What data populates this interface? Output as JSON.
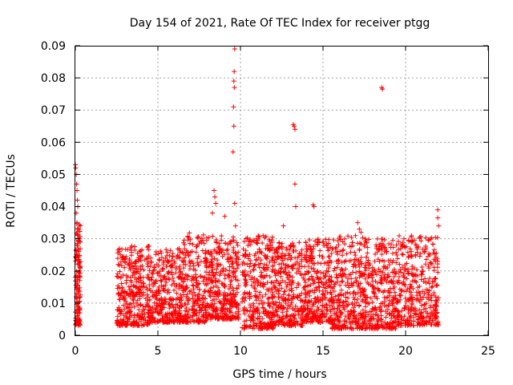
{
  "chart_data": {
    "type": "scatter",
    "title": "Day 154 of 2021, Rate Of TEC Index for receiver ptgg",
    "xlabel": "GPS time / hours",
    "ylabel": "ROTI / TECUs",
    "xlim": [
      0,
      25
    ],
    "ylim": [
      0,
      0.09
    ],
    "xticks": [
      0,
      5,
      10,
      15,
      20,
      25
    ],
    "yticks": [
      0,
      0.01,
      0.02,
      0.03,
      0.04,
      0.05,
      0.06,
      0.07,
      0.08,
      0.09
    ],
    "xtick_labels": [
      "0",
      "5",
      "10",
      "15",
      "20",
      "25"
    ],
    "ytick_labels": [
      "0",
      "0.01",
      "0.02",
      "0.03",
      "0.04",
      "0.05",
      "0.06",
      "0.07",
      "0.08",
      "0.09"
    ],
    "grid": true,
    "marker": "+",
    "color": "#ff0000",
    "series": [
      {
        "points": [
          [
            0.0,
            0.053
          ],
          [
            0.02,
            0.052
          ],
          [
            0.05,
            0.05
          ],
          [
            0.08,
            0.047
          ],
          [
            0.1,
            0.045
          ],
          [
            0.12,
            0.042
          ],
          [
            0.15,
            0.04
          ],
          [
            0.05,
            0.038
          ],
          [
            0.1,
            0.035
          ],
          [
            0.2,
            0.033
          ],
          [
            0.15,
            0.031
          ],
          [
            0.25,
            0.03
          ],
          [
            0.1,
            0.028
          ],
          [
            0.2,
            0.026
          ],
          [
            0.05,
            0.024
          ],
          [
            0.15,
            0.022
          ],
          [
            0.25,
            0.02
          ],
          [
            0.0,
            0.018
          ],
          [
            0.1,
            0.016
          ],
          [
            0.2,
            0.014
          ],
          [
            0.05,
            0.012
          ],
          [
            0.15,
            0.01
          ],
          [
            0.25,
            0.008
          ],
          [
            0.1,
            0.006
          ],
          [
            0.2,
            0.004
          ],
          [
            0.3,
            0.034
          ],
          [
            0.3,
            0.029
          ],
          [
            0.1,
            0.025
          ],
          [
            8.4,
            0.045
          ],
          [
            8.45,
            0.043
          ],
          [
            8.5,
            0.041
          ],
          [
            8.3,
            0.038
          ],
          [
            9.05,
            0.037
          ],
          [
            9.65,
            0.089
          ],
          [
            9.62,
            0.082
          ],
          [
            9.6,
            0.079
          ],
          [
            9.63,
            0.077
          ],
          [
            9.58,
            0.071
          ],
          [
            9.6,
            0.065
          ],
          [
            9.55,
            0.057
          ],
          [
            9.65,
            0.041
          ],
          [
            9.7,
            0.034
          ],
          [
            12.6,
            0.034
          ],
          [
            13.2,
            0.0655
          ],
          [
            13.25,
            0.065
          ],
          [
            13.3,
            0.064
          ],
          [
            13.3,
            0.047
          ],
          [
            13.35,
            0.04
          ],
          [
            14.4,
            0.0405
          ],
          [
            14.45,
            0.04
          ],
          [
            17.1,
            0.035
          ],
          [
            17.2,
            0.033
          ],
          [
            17.3,
            0.032
          ],
          [
            18.55,
            0.077
          ],
          [
            18.6,
            0.0765
          ],
          [
            21.95,
            0.039
          ],
          [
            21.95,
            0.0365
          ],
          [
            22.0,
            0.034
          ]
        ],
        "bands": [
          {
            "x_range": [
              0.0,
              0.3
            ],
            "y_range": [
              0.003,
              0.035
            ],
            "count": 110
          },
          {
            "x_range": [
              2.5,
              4.5
            ],
            "y_range": [
              0.003,
              0.028
            ],
            "count": 340
          },
          {
            "x_range": [
              4.5,
              6.5
            ],
            "y_range": [
              0.004,
              0.027
            ],
            "count": 330
          },
          {
            "x_range": [
              6.5,
              8.0
            ],
            "y_range": [
              0.004,
              0.032
            ],
            "count": 260
          },
          {
            "x_range": [
              8.0,
              9.9
            ],
            "y_range": [
              0.005,
              0.031
            ],
            "count": 340
          },
          {
            "x_range": [
              10.1,
              12.0
            ],
            "y_range": [
              0.002,
              0.031
            ],
            "count": 320
          },
          {
            "x_range": [
              12.0,
              13.8
            ],
            "y_range": [
              0.003,
              0.029
            ],
            "count": 300
          },
          {
            "x_range": [
              13.8,
              15.5
            ],
            "y_range": [
              0.004,
              0.03
            ],
            "count": 300
          },
          {
            "x_range": [
              15.5,
              17.5
            ],
            "y_range": [
              0.002,
              0.031
            ],
            "count": 330
          },
          {
            "x_range": [
              17.5,
              19.5
            ],
            "y_range": [
              0.002,
              0.03
            ],
            "count": 330
          },
          {
            "x_range": [
              19.5,
              22.0
            ],
            "y_range": [
              0.003,
              0.031
            ],
            "count": 380
          }
        ]
      }
    ]
  }
}
